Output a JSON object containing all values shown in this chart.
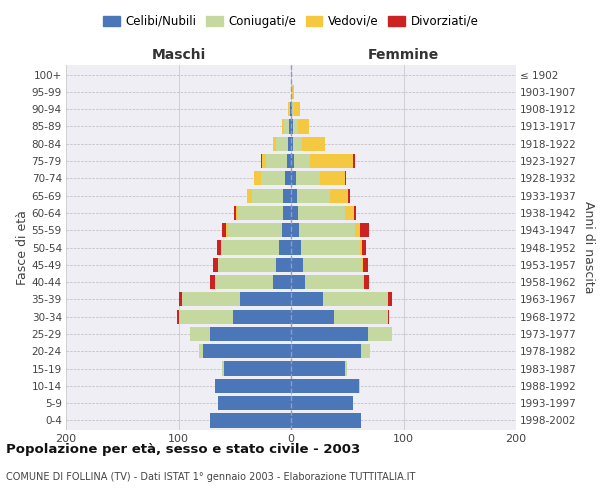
{
  "age_groups": [
    "0-4",
    "5-9",
    "10-14",
    "15-19",
    "20-24",
    "25-29",
    "30-34",
    "35-39",
    "40-44",
    "45-49",
    "50-54",
    "55-59",
    "60-64",
    "65-69",
    "70-74",
    "75-79",
    "80-84",
    "85-89",
    "90-94",
    "95-99",
    "100+"
  ],
  "birth_years": [
    "1998-2002",
    "1993-1997",
    "1988-1992",
    "1983-1987",
    "1978-1982",
    "1973-1977",
    "1968-1972",
    "1963-1967",
    "1958-1962",
    "1953-1957",
    "1948-1952",
    "1943-1947",
    "1938-1942",
    "1933-1937",
    "1928-1932",
    "1923-1927",
    "1918-1922",
    "1913-1917",
    "1908-1912",
    "1903-1907",
    "≤ 1902"
  ],
  "colors": {
    "celibi": "#4b76b8",
    "coniugati": "#c5d8a0",
    "vedovi": "#f5c842",
    "divorziati": "#cc2222"
  },
  "maschi": {
    "celibi": [
      72,
      65,
      68,
      60,
      78,
      72,
      52,
      45,
      16,
      13,
      11,
      8,
      7,
      7,
      5,
      4,
      3,
      2,
      1,
      0,
      0
    ],
    "coniugati": [
      0,
      0,
      0,
      1,
      4,
      18,
      48,
      52,
      52,
      52,
      50,
      48,
      40,
      28,
      22,
      18,
      10,
      4,
      1,
      0,
      0
    ],
    "vedovi": [
      0,
      0,
      0,
      0,
      0,
      0,
      0,
      0,
      0,
      0,
      1,
      2,
      2,
      4,
      6,
      4,
      3,
      2,
      1,
      0,
      0
    ],
    "divorziati": [
      0,
      0,
      0,
      0,
      0,
      0,
      1,
      3,
      4,
      4,
      4,
      3,
      2,
      0,
      0,
      1,
      0,
      0,
      0,
      0,
      0
    ]
  },
  "femmine": {
    "celibi": [
      62,
      55,
      60,
      48,
      62,
      68,
      38,
      28,
      12,
      11,
      9,
      7,
      6,
      5,
      4,
      3,
      2,
      2,
      1,
      0,
      0
    ],
    "coniugati": [
      0,
      0,
      1,
      2,
      8,
      22,
      48,
      58,
      52,
      52,
      52,
      50,
      42,
      30,
      22,
      14,
      8,
      4,
      2,
      1,
      0
    ],
    "vedovi": [
      0,
      0,
      0,
      0,
      0,
      0,
      0,
      0,
      1,
      1,
      2,
      4,
      8,
      16,
      22,
      38,
      20,
      10,
      5,
      2,
      1
    ],
    "divorziati": [
      0,
      0,
      0,
      0,
      0,
      0,
      1,
      4,
      4,
      4,
      4,
      8,
      2,
      1,
      1,
      2,
      0,
      0,
      0,
      0,
      0
    ]
  },
  "title": "Popolazione per età, sesso e stato civile - 2003",
  "subtitle": "COMUNE DI FOLLINA (TV) - Dati ISTAT 1° gennaio 2003 - Elaborazione TUTTITALIA.IT",
  "ylabel_left": "Fasce di età",
  "ylabel_right": "Anni di nascita",
  "xlabel_left": "Maschi",
  "xlabel_right": "Femmine",
  "xlim": 200,
  "background_color": "#ffffff",
  "plot_bg_color": "#eeeef4",
  "grid_color": "#bbbbbb",
  "legend_labels": [
    "Celibi/Nubili",
    "Coniugati/e",
    "Vedovi/e",
    "Divorziati/e"
  ]
}
